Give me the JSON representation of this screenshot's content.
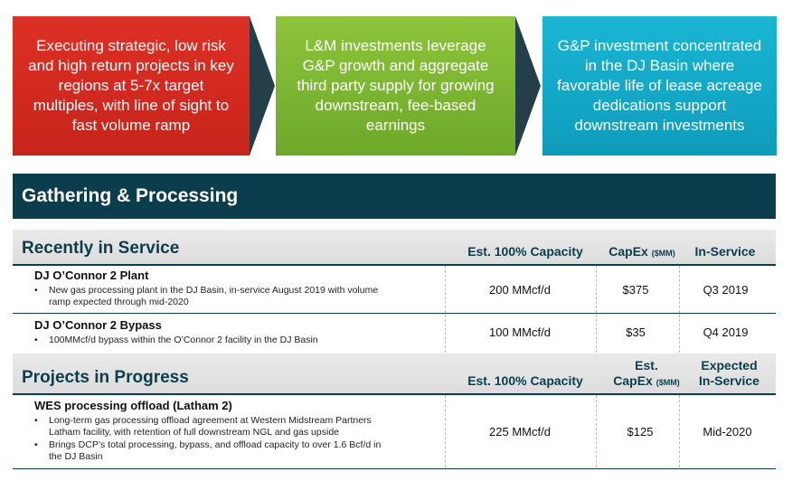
{
  "banners": [
    {
      "text": "Executing strategic, low risk and high return projects in key regions at 5-7x target multiples, with line of sight to fast volume ramp",
      "color": "#d42a20"
    },
    {
      "text": "L&M investments leverage G&P growth and aggregate third party supply for growing downstream, fee-based earnings",
      "color": "#7ab530"
    },
    {
      "text": "G&P investment concentrated in the DJ Basin where favorable life of lease acreage dedications support downstream investments",
      "color": "#13a9c7"
    }
  ],
  "header": {
    "title": "Gathering & Processing",
    "color": "#0b3d4d"
  },
  "recent": {
    "title": "Recently in Service",
    "columns": {
      "capacity": "Est. 100% Capacity",
      "capex": "CapEx",
      "capex_unit": "($MM)",
      "inservice": "In-Service"
    },
    "projects": [
      {
        "name": "DJ O’Connor 2 Plant",
        "bullets": [
          "New gas processing plant in the DJ Basin, in-service August 2019 with volume",
          "ramp expected through mid-2020"
        ],
        "capacity": "200 MMcf/d",
        "capex": "$375",
        "inservice": "Q3 2019"
      },
      {
        "name": "DJ O’Connor 2 Bypass",
        "bullets": [
          "100MMcf/d bypass within the O’Connor 2 facility in the DJ Basin"
        ],
        "capacity": "100 MMcf/d",
        "capex": "$35",
        "inservice": "Q4 2019"
      }
    ]
  },
  "progress": {
    "title": "Projects in Progress",
    "columns": {
      "capacity": "Est. 100% Capacity",
      "capex_line1": "Est.",
      "capex_line2": "CapEx",
      "capex_unit": "($MM)",
      "inservice_line1": "Expected",
      "inservice_line2": "In-Service"
    },
    "projects": [
      {
        "name": "WES processing offload (Latham 2)",
        "bullets": [
          "Long-term gas processing offload agreement at Western Midstream Partners",
          "Latham facility, with retention of full downstream NGL and gas upside",
          "Brings DCP’s total processing, bypass, and offload capacity to over 1.6 Bcf/d in",
          "the DJ Basin"
        ],
        "capacity": "225 MMcf/d",
        "capex": "$125",
        "inservice": "Mid-2020"
      }
    ]
  }
}
